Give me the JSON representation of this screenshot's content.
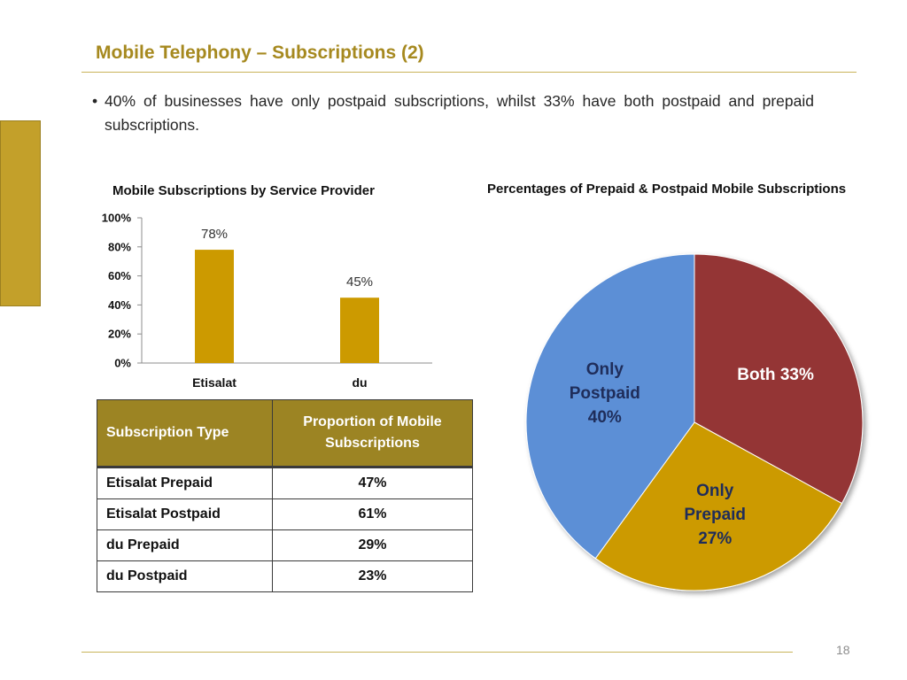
{
  "slide": {
    "title": "Mobile Telephony – Subscriptions (2)",
    "bullet": "40% of businesses have only postpaid subscriptions, whilst 33% have both postpaid and prepaid subscriptions.",
    "bullet_marker": "•",
    "page_number": "18"
  },
  "colors": {
    "accent": "#c3a02a",
    "bar": "#cc9a00",
    "table_header": "#9c8423",
    "pie_blue": "#5b8fd6",
    "pie_red": "#943634",
    "pie_gold": "#cc9a00"
  },
  "chart_data": [
    {
      "type": "bar",
      "title": "Mobile Subscriptions by Service Provider",
      "categories": [
        "Etisalat",
        "du"
      ],
      "values": [
        78,
        45
      ],
      "data_labels": [
        "78%",
        "45%"
      ],
      "ylim": [
        0,
        100
      ],
      "yticks": [
        0,
        20,
        40,
        60,
        80,
        100
      ],
      "ytick_labels": [
        "0%",
        "20%",
        "40%",
        "60%",
        "80%",
        "100%"
      ],
      "xlabel": "",
      "ylabel": "",
      "grid": false
    },
    {
      "type": "pie",
      "title": "Percentages of Prepaid & Postpaid Mobile Subscriptions",
      "slices": [
        {
          "label": "Both 33%",
          "label_lines": [
            "Both 33%"
          ],
          "value": 33,
          "color": "#943634",
          "text_color": "#ffffff"
        },
        {
          "label": "Only Prepaid 27%",
          "label_lines": [
            "Only",
            "Prepaid",
            "27%"
          ],
          "value": 27,
          "color": "#cc9a00",
          "text_color": "#1f2d5a"
        },
        {
          "label": "Only Postpaid 40%",
          "label_lines": [
            "Only",
            "Postpaid",
            "40%"
          ],
          "value": 40,
          "color": "#5b8fd6",
          "text_color": "#1f2d5a"
        }
      ]
    }
  ],
  "table": {
    "headers": [
      "Subscription Type",
      "Proportion of Mobile Subscriptions"
    ],
    "rows": [
      [
        "Etisalat Prepaid",
        "47%"
      ],
      [
        "Etisalat Postpaid",
        "61%"
      ],
      [
        "du Prepaid",
        "29%"
      ],
      [
        "du Postpaid",
        "23%"
      ]
    ]
  }
}
